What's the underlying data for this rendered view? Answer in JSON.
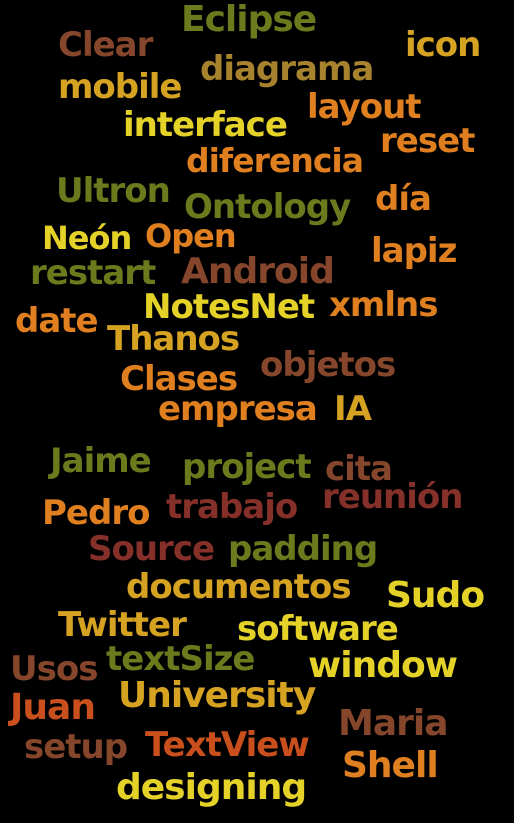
{
  "words": [
    {
      "text": "Eclipse",
      "color": "olive"
    },
    {
      "text": "Clear",
      "color": "brown"
    },
    {
      "text": "icon",
      "color": "gold"
    },
    {
      "text": "diagrama",
      "color": "tan"
    },
    {
      "text": "mobile",
      "color": "gold"
    },
    {
      "text": "layout",
      "color": "orange"
    },
    {
      "text": "interface",
      "color": "yellow"
    },
    {
      "text": "reset",
      "color": "orange"
    },
    {
      "text": "diferencia",
      "color": "orange"
    },
    {
      "text": "Ultron",
      "color": "olive"
    },
    {
      "text": "Ontology",
      "color": "olive"
    },
    {
      "text": "día",
      "color": "orange"
    },
    {
      "text": "Neón",
      "color": "yellow"
    },
    {
      "text": "Open",
      "color": "orange"
    },
    {
      "text": "lapiz",
      "color": "orange"
    },
    {
      "text": "restart",
      "color": "olive"
    },
    {
      "text": "Android",
      "color": "brown"
    },
    {
      "text": "NotesNet",
      "color": "yellow"
    },
    {
      "text": "xmlns",
      "color": "orange"
    },
    {
      "text": "date",
      "color": "orange"
    },
    {
      "text": "Thanos",
      "color": "gold"
    },
    {
      "text": "objetos",
      "color": "brown"
    },
    {
      "text": "Clases",
      "color": "orange"
    },
    {
      "text": "empresa",
      "color": "orange"
    },
    {
      "text": "IA",
      "color": "gold"
    },
    {
      "text": "Jaime",
      "color": "olive"
    },
    {
      "text": "project",
      "color": "olive"
    },
    {
      "text": "cita",
      "color": "brown"
    },
    {
      "text": "reunión",
      "color": "maroon"
    },
    {
      "text": "Pedro",
      "color": "orange"
    },
    {
      "text": "trabajo",
      "color": "maroon"
    },
    {
      "text": "Source",
      "color": "maroon"
    },
    {
      "text": "padding",
      "color": "olive"
    },
    {
      "text": "documentos",
      "color": "gold"
    },
    {
      "text": "Sudo",
      "color": "yellow"
    },
    {
      "text": "Twitter",
      "color": "gold"
    },
    {
      "text": "software",
      "color": "yellow"
    },
    {
      "text": "Usos",
      "color": "brown"
    },
    {
      "text": "textSize",
      "color": "olive"
    },
    {
      "text": "window",
      "color": "yellow"
    },
    {
      "text": "Juan",
      "color": "red"
    },
    {
      "text": "University",
      "color": "gold"
    },
    {
      "text": "Maria",
      "color": "brown"
    },
    {
      "text": "setup",
      "color": "brown"
    },
    {
      "text": "TextView",
      "color": "red"
    },
    {
      "text": "Shell",
      "color": "orange"
    },
    {
      "text": "designing",
      "color": "yellow"
    }
  ],
  "palette": {
    "background": "#000000",
    "olive": "#6b7a1c",
    "yellow": "#e4d228",
    "gold": "#d6a222",
    "orange": "#df7f1f",
    "brown": "#86462c",
    "maroon": "#86302a",
    "red": "#c94f1c",
    "tan": "#a8832e"
  }
}
